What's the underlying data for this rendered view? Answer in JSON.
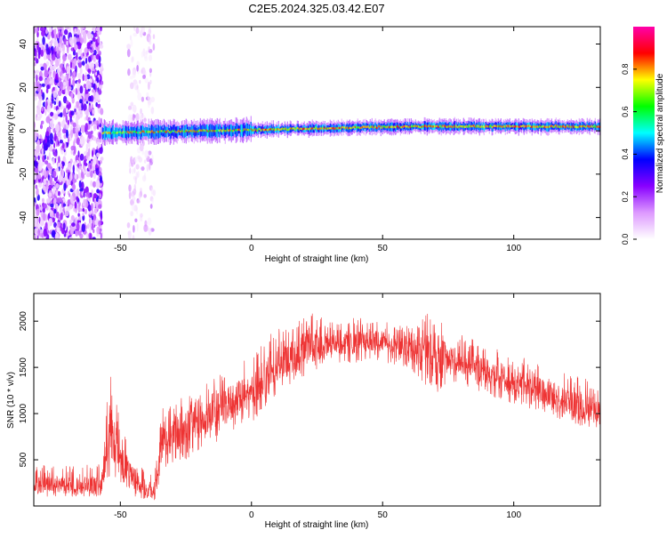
{
  "page_title": "C2E5.2024.325.03.42.E07",
  "chart_data": [
    {
      "type": "heatmap",
      "xlabel": "Height of straight line (km)",
      "ylabel": "Frequency (Hz)",
      "xlim": [
        -83,
        133
      ],
      "ylim": [
        -50,
        48
      ],
      "xticks": [
        -50,
        0,
        50,
        100
      ],
      "yticks": [
        -40,
        -20,
        0,
        20,
        40
      ],
      "colorbar": {
        "label": "Normalized spectral amplitude",
        "range": [
          0,
          1
        ],
        "ticks": [
          "0.0",
          "0.2",
          "0.4",
          "0.6",
          "0.8"
        ],
        "tick_values": [
          0,
          0.2,
          0.4,
          0.6,
          0.8
        ],
        "colors": [
          "#ffffff",
          "#dd99ff",
          "#8800ff",
          "#0000ff",
          "#00ffff",
          "#00ff00",
          "#ffff00",
          "#ff0000",
          "#ff00aa"
        ]
      },
      "regions": [
        {
          "desc": "noise",
          "x": [
            -83,
            -57
          ],
          "y": [
            -50,
            48
          ],
          "amplitude": 0.2
        },
        {
          "desc": "noise",
          "x": [
            -47,
            -37
          ],
          "y": [
            -50,
            48
          ],
          "amplitude": 0.1
        },
        {
          "desc": "carrier",
          "x": [
            -57,
            133
          ],
          "y_center": [
            -1,
            2
          ],
          "amplitude": 0.8
        }
      ]
    },
    {
      "type": "line",
      "xlabel": "Height of straight line (km)",
      "ylabel": "SNR (10 * v/v)",
      "xlim": [
        -83,
        133
      ],
      "ylim": [
        0,
        2300
      ],
      "xticks": [
        -50,
        0,
        50,
        100
      ],
      "yticks": [
        500,
        1000,
        1500,
        2000
      ],
      "color": "#ee3333",
      "envelope": [
        {
          "x": -83,
          "low": 100,
          "mid": 230,
          "high": 450
        },
        {
          "x": -57,
          "low": 100,
          "mid": 230,
          "high": 450
        },
        {
          "x": -54,
          "low": 300,
          "mid": 800,
          "high": 1550
        },
        {
          "x": -50,
          "low": 250,
          "mid": 500,
          "high": 900
        },
        {
          "x": -45,
          "low": 100,
          "mid": 300,
          "high": 600
        },
        {
          "x": -37,
          "low": 50,
          "mid": 150,
          "high": 350
        },
        {
          "x": -34,
          "low": 400,
          "mid": 750,
          "high": 1100
        },
        {
          "x": -25,
          "low": 500,
          "mid": 850,
          "high": 1200
        },
        {
          "x": -15,
          "low": 650,
          "mid": 1000,
          "high": 1400
        },
        {
          "x": 0,
          "low": 900,
          "mid": 1250,
          "high": 1650
        },
        {
          "x": 10,
          "low": 1200,
          "mid": 1550,
          "high": 1950
        },
        {
          "x": 20,
          "low": 1400,
          "mid": 1700,
          "high": 2100
        },
        {
          "x": 30,
          "low": 1550,
          "mid": 1750,
          "high": 2050
        },
        {
          "x": 40,
          "low": 1550,
          "mid": 1780,
          "high": 2050
        },
        {
          "x": 50,
          "low": 1550,
          "mid": 1780,
          "high": 2000
        },
        {
          "x": 60,
          "low": 1500,
          "mid": 1720,
          "high": 1950
        },
        {
          "x": 70,
          "low": 1200,
          "mid": 1650,
          "high": 2150
        },
        {
          "x": 75,
          "low": 1350,
          "mid": 1600,
          "high": 1900
        },
        {
          "x": 90,
          "low": 1200,
          "mid": 1450,
          "high": 1750
        },
        {
          "x": 110,
          "low": 1000,
          "mid": 1250,
          "high": 1550
        },
        {
          "x": 133,
          "low": 800,
          "mid": 1000,
          "high": 1350
        }
      ]
    }
  ]
}
